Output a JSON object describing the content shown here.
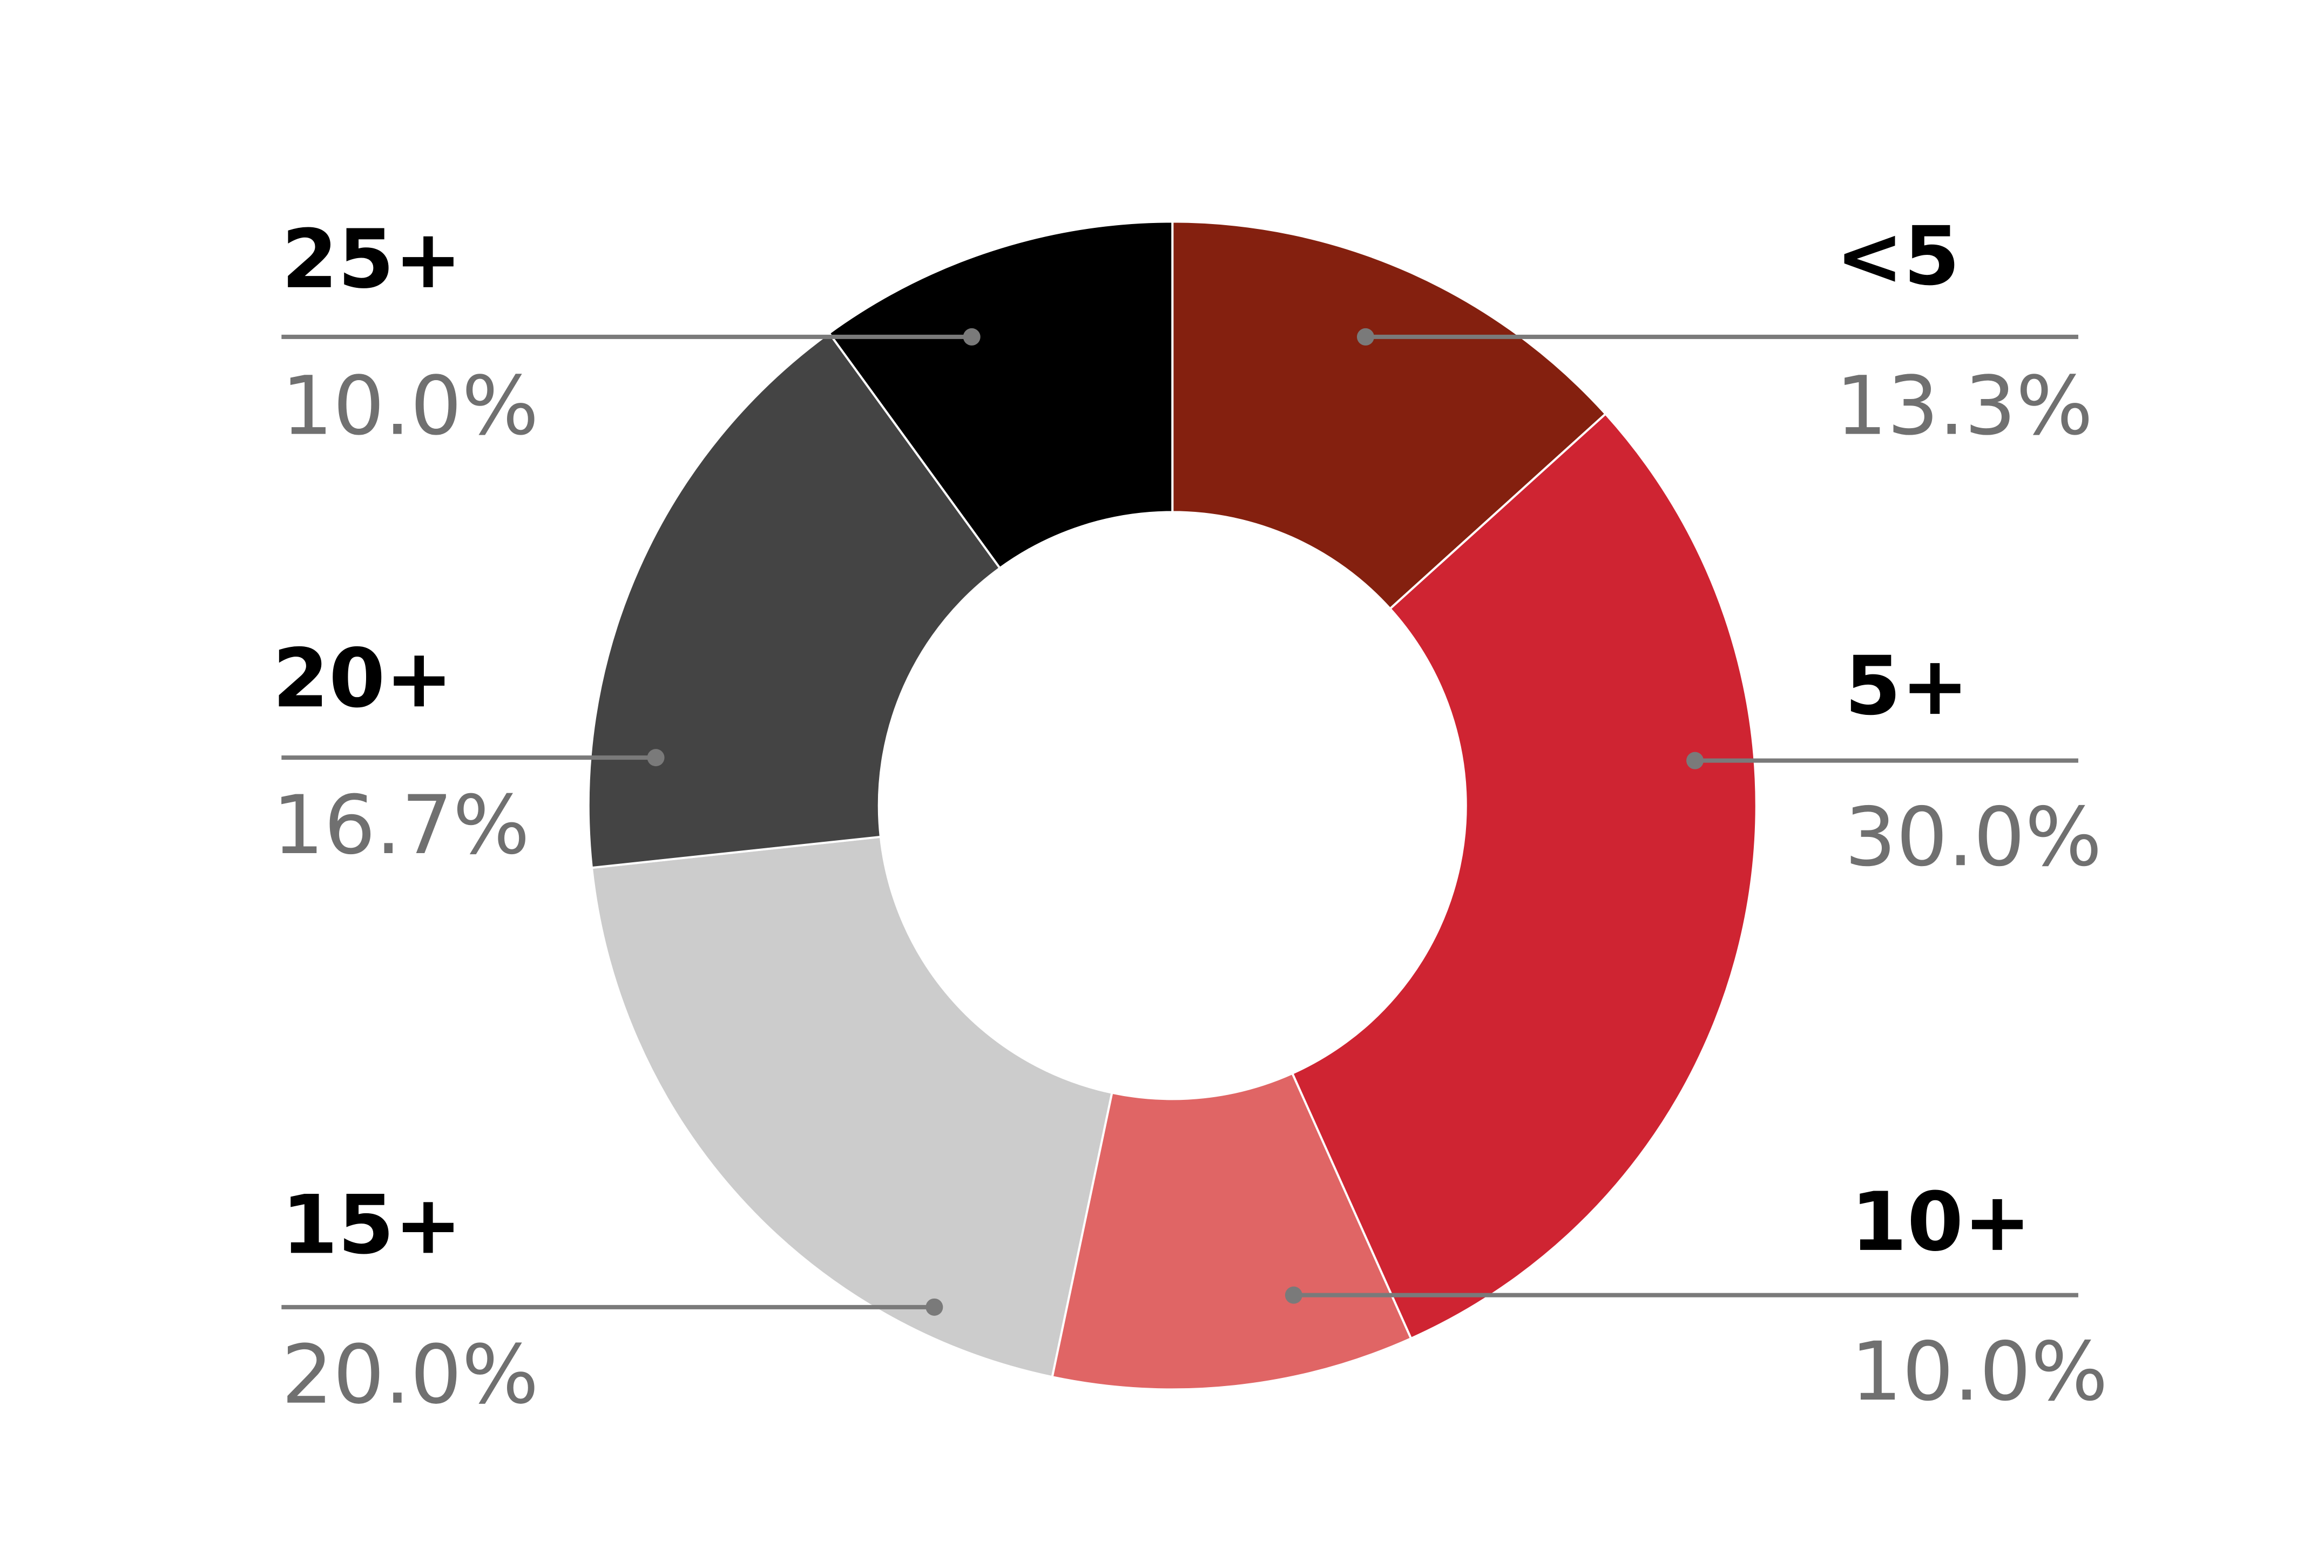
{
  "chart_data": {
    "type": "donut",
    "categories": [
      "<5",
      "5+",
      "10+",
      "15+",
      "20+",
      "25+"
    ],
    "values": [
      13.3,
      30.0,
      10.0,
      20.0,
      16.7,
      10.0
    ],
    "value_labels": [
      "13.3%",
      "30.0%",
      "10.0%",
      "20.0%",
      "16.7%",
      "10.0%"
    ],
    "colors": [
      "#84200f",
      "#cf2432",
      "#e06565",
      "#cccccc",
      "#444444",
      "#000000"
    ]
  }
}
